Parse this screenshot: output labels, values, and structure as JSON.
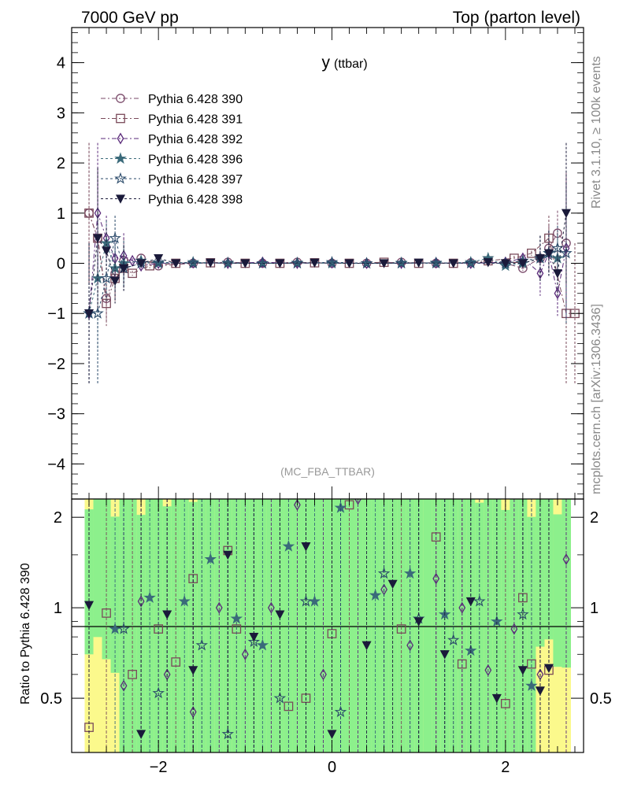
{
  "header": {
    "left": "7000 GeV pp",
    "right": "Top (parton level)"
  },
  "side_text": {
    "rivet": "Rivet 3.1.10, ≥ 100k events",
    "mcplots": "mcplots.cern.ch [arXiv:1306.3436]"
  },
  "chart_data": [
    {
      "type": "line",
      "title": "y",
      "title_suffix": "(ttbar)",
      "analysis_tag": "(MC_FBA_TTBAR)",
      "xlim": [
        -3.0,
        2.9
      ],
      "ylim": [
        -4.7,
        4.7
      ],
      "x_ticks": [
        -2,
        0,
        2
      ],
      "x_tick_labels": [
        "−2",
        "0",
        "2"
      ],
      "y_ticks": [
        -4,
        -3,
        -2,
        -1,
        0,
        1,
        2,
        3,
        4
      ],
      "y_tick_labels": [
        "−4",
        "−3",
        "−2",
        "−1",
        "0",
        "1",
        "2",
        "3",
        "4"
      ],
      "legend_position": "top-left",
      "series": [
        {
          "name": "Pythia 6.428 390",
          "marker": "circle-open",
          "color": "#7a4a6a",
          "dash": "6,3,2,3",
          "x": [
            -2.8,
            -2.7,
            -2.6,
            -2.5,
            -2.4,
            -2.2,
            -2.0,
            -1.6,
            -1.2,
            -0.8,
            -0.4,
            0.0,
            0.4,
            0.8,
            1.2,
            1.6,
            2.0,
            2.2,
            2.4,
            2.5,
            2.6,
            2.7
          ],
          "y": [
            1.0,
            0.5,
            -0.7,
            -0.2,
            0.05,
            0.1,
            -0.05,
            0.0,
            0.02,
            0.0,
            0.02,
            0.0,
            0.0,
            0.02,
            0.0,
            0.01,
            0.0,
            -0.1,
            0.1,
            0.3,
            0.6,
            0.4
          ]
        },
        {
          "name": "Pythia 6.428 391",
          "marker": "square-open",
          "color": "#7a4a5a",
          "dash": "6,3,2,3",
          "x": [
            -2.8,
            -2.7,
            -2.6,
            -2.5,
            -2.4,
            -2.3,
            -2.1,
            -1.8,
            -1.4,
            -1.0,
            -0.6,
            -0.2,
            0.2,
            0.6,
            1.0,
            1.4,
            1.8,
            2.1,
            2.3,
            2.5,
            2.7,
            2.8
          ],
          "y": [
            1.0,
            0.5,
            -0.8,
            -0.3,
            -0.1,
            -0.2,
            -0.05,
            0.0,
            0.01,
            0.0,
            0.0,
            0.01,
            0.0,
            0.02,
            0.0,
            0.0,
            0.05,
            0.1,
            0.2,
            0.5,
            -1.0,
            -1.0
          ]
        },
        {
          "name": "Pythia 6.428 392",
          "marker": "diamond-open",
          "color": "#5a2a7a",
          "dash": "6,3,2,3",
          "x": [
            -2.8,
            -2.7,
            -2.6,
            -2.5,
            -2.4,
            -2.3,
            -2.2,
            -2.0,
            -1.6,
            -1.2,
            -0.8,
            -0.4,
            0.0,
            0.4,
            0.8,
            1.2,
            1.6,
            2.0,
            2.2,
            2.4,
            2.5,
            2.6,
            2.7
          ],
          "y": [
            -1.0,
            1.0,
            0.5,
            0.1,
            0.15,
            0.05,
            -0.05,
            0.0,
            0.01,
            0.0,
            0.02,
            0.0,
            0.01,
            0.0,
            0.0,
            0.01,
            0.0,
            0.02,
            0.1,
            -0.2,
            0.2,
            -0.6,
            0.3
          ]
        },
        {
          "name": "Pythia 6.428 396",
          "marker": "star",
          "color": "#3a6a7a",
          "dash": "3,3",
          "x": [
            -2.8,
            -2.7,
            -2.6,
            -2.5,
            -2.4,
            -2.2,
            -2.0,
            -1.6,
            -1.2,
            -0.8,
            -0.4,
            0.0,
            0.4,
            0.8,
            1.2,
            1.6,
            1.8,
            2.0,
            2.2,
            2.4,
            2.5,
            2.6
          ],
          "y": [
            -1.0,
            -0.3,
            0.4,
            -0.1,
            0.0,
            0.05,
            0.0,
            0.02,
            0.0,
            0.0,
            0.01,
            0.0,
            0.0,
            0.01,
            0.0,
            0.02,
            0.1,
            -0.05,
            0.0,
            0.1,
            0.2,
            0.1
          ]
        },
        {
          "name": "Pythia 6.428 397",
          "marker": "star-open",
          "color": "#2a4a6a",
          "dash": "3,3",
          "x": [
            -2.8,
            -2.7,
            -2.6,
            -2.5,
            -2.4,
            -2.2,
            -2.0,
            -1.6,
            -1.2,
            -0.8,
            -0.4,
            0.0,
            0.4,
            0.8,
            1.2,
            1.6,
            2.0,
            2.2,
            2.4,
            2.5,
            2.6,
            2.7
          ],
          "y": [
            -1.0,
            -1.0,
            -0.3,
            0.5,
            -0.1,
            0.0,
            0.02,
            0.0,
            0.01,
            0.0,
            0.0,
            0.02,
            0.0,
            0.0,
            0.01,
            0.0,
            0.0,
            0.05,
            0.1,
            0.2,
            0.3,
            0.2
          ]
        },
        {
          "name": "Pythia 6.428 398",
          "marker": "triangle-down",
          "color": "#1a1a3a",
          "dash": "3,3",
          "x": [
            -2.8,
            -2.7,
            -2.6,
            -2.5,
            -2.4,
            -2.2,
            -2.0,
            -1.8,
            -1.4,
            -1.0,
            -0.6,
            -0.2,
            0.2,
            0.6,
            1.0,
            1.4,
            1.8,
            2.0,
            2.2,
            2.4,
            2.5,
            2.6,
            2.7
          ],
          "y": [
            -1.0,
            0.5,
            0.25,
            -0.35,
            -0.1,
            0.0,
            0.1,
            0.0,
            0.01,
            0.0,
            0.0,
            0.01,
            0.0,
            0.0,
            0.01,
            0.0,
            0.02,
            0.0,
            0.0,
            0.1,
            0.2,
            -0.2,
            1.0
          ]
        }
      ]
    },
    {
      "type": "line",
      "ylabel": "Ratio to Pythia 6.428 390",
      "xlim": [
        -3.0,
        2.9
      ],
      "ylim": [
        0.33,
        2.3
      ],
      "x_ticks": [
        -2,
        0,
        2
      ],
      "x_tick_labels": [
        "−2",
        "0",
        "2"
      ],
      "y_ticks": [
        0.5,
        1,
        2
      ],
      "y_tick_labels": [
        "0.5",
        "1",
        "2"
      ],
      "reference_line": 1,
      "band_colors": {
        "inner": "#8cf08c",
        "outer": "#fbf98c"
      },
      "series": [
        {
          "name": "Pythia 6.428 391",
          "marker": "square-open",
          "color": "#7a4a5a",
          "x": [
            -2.8,
            -2.6,
            -2.3,
            -2.0,
            -1.8,
            -1.6,
            -1.2,
            -1.1,
            -0.5,
            -0.3,
            0.0,
            0.2,
            0.8,
            1.2,
            1.5,
            2.0,
            2.2,
            2.3,
            2.5
          ],
          "y": [
            0.4,
            0.96,
            0.6,
            0.85,
            0.66,
            1.25,
            1.55,
            0.85,
            0.47,
            0.5,
            0.82,
            2.2,
            0.85,
            1.72,
            0.65,
            0.48,
            1.08,
            0.65,
            0.62
          ]
        },
        {
          "name": "Pythia 6.428 392",
          "marker": "diamond-open",
          "color": "#5a2a7a",
          "x": [
            -2.4,
            -2.2,
            -1.9,
            -1.6,
            -1.3,
            -1.0,
            -0.7,
            -0.4,
            -0.1,
            0.3,
            0.6,
            0.9,
            1.2,
            1.5,
            1.8,
            2.1,
            2.4,
            2.7
          ],
          "y": [
            0.55,
            1.05,
            0.6,
            0.45,
            1.0,
            0.7,
            1.0,
            2.2,
            0.6,
            2.3,
            1.15,
            0.75,
            1.25,
            1.0,
            0.62,
            0.85,
            0.6,
            1.45
          ]
        },
        {
          "name": "Pythia 6.428 396",
          "marker": "star",
          "color": "#3a6a7a",
          "x": [
            -2.5,
            -2.1,
            -1.7,
            -1.4,
            -1.1,
            -0.8,
            -0.5,
            -0.2,
            0.1,
            0.5,
            0.9,
            1.3,
            1.6,
            1.9,
            2.3
          ],
          "y": [
            0.85,
            1.08,
            1.05,
            1.45,
            0.92,
            0.75,
            1.6,
            1.05,
            2.15,
            1.1,
            1.3,
            0.95,
            0.72,
            0.9,
            0.55
          ]
        },
        {
          "name": "Pythia 6.428 397",
          "marker": "star-open",
          "color": "#2a4a6a",
          "x": [
            -2.4,
            -2.0,
            -1.5,
            -1.2,
            -0.9,
            -0.6,
            -0.3,
            0.1,
            0.6,
            1.0,
            1.4,
            1.7,
            2.2
          ],
          "y": [
            0.85,
            0.52,
            0.75,
            0.38,
            0.77,
            0.5,
            1.05,
            0.45,
            1.3,
            0.92,
            0.78,
            1.05,
            0.95
          ]
        },
        {
          "name": "Pythia 6.428 398",
          "marker": "triangle-down",
          "color": "#1a1a3a",
          "x": [
            -2.8,
            -2.2,
            -1.9,
            -1.6,
            -1.2,
            -0.9,
            -0.6,
            -0.3,
            0.0,
            0.4,
            0.7,
            1.0,
            1.3,
            1.6,
            1.9,
            2.2,
            2.4,
            2.5
          ],
          "y": [
            1.02,
            0.38,
            0.95,
            0.62,
            1.5,
            0.8,
            0.95,
            1.6,
            0.38,
            0.75,
            1.2,
            0.9,
            0.7,
            1.05,
            0.5,
            0.62,
            0.53,
            0.63
          ]
        }
      ]
    }
  ]
}
